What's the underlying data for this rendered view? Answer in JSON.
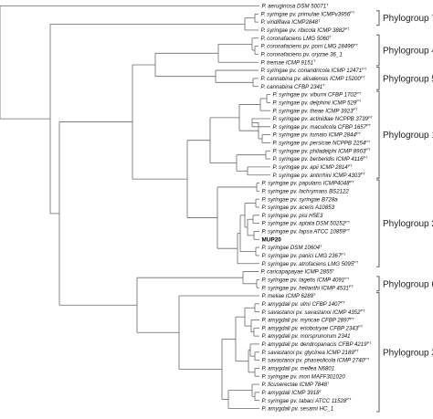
{
  "tree": {
    "leaves": [
      {
        "id": 0,
        "name": "P. aeruginosa DSM 50071",
        "sup": "T"
      },
      {
        "id": 1,
        "name": "P. syringae pv. primulae ICMPv3956",
        "sup": "PT"
      },
      {
        "id": 2,
        "name": "P. viridiflava ICMP2848",
        "sup": "T"
      },
      {
        "id": 3,
        "name": "P. syringae pv. ribicola ICMP 3882",
        "sup": "PT"
      },
      {
        "id": 4,
        "name": "P. coronafaciens LMG 5060",
        "sup": "T"
      },
      {
        "id": 5,
        "name": "P. coronafaciens pv. porri LMG 28496",
        "sup": "PT"
      },
      {
        "id": 6,
        "name": "P. coronafaciens pv. oryzae 36_1",
        "sup": ""
      },
      {
        "id": 7,
        "name": "P. tremae ICMP 9151",
        "sup": "T"
      },
      {
        "id": 8,
        "name": "P. syringae pv. coriandricola ICMP 12471",
        "sup": "PT"
      },
      {
        "id": 9,
        "name": "P. cannabina pv. alisalensis ICMP 15200",
        "sup": "PT"
      },
      {
        "id": 10,
        "name": "P. cannabina CFBP 2341",
        "sup": "T"
      },
      {
        "id": 11,
        "name": "P. syringae pv. viburni CFBP 1702",
        "sup": "PT"
      },
      {
        "id": 12,
        "name": "P. syringae pv. delphinii ICMP 529",
        "sup": "PT"
      },
      {
        "id": 13,
        "name": "P. syringae pv. theae ICMP 3923",
        "sup": "PT"
      },
      {
        "id": 14,
        "name": "P. syringae pv. actinidiae NCPPB 3739",
        "sup": "PT"
      },
      {
        "id": 15,
        "name": "P. syringae pv. maculicola CFBP 1657",
        "sup": "PT"
      },
      {
        "id": 16,
        "name": "P. syringae pv. tomato ICMP 2844",
        "sup": "PT"
      },
      {
        "id": 17,
        "name": "P. syringae pv. persicae NCPPB 2254",
        "sup": "PT"
      },
      {
        "id": 18,
        "name": "P. syringae pv. philadelphi ICMP 8903",
        "sup": "PT"
      },
      {
        "id": 19,
        "name": "P. syringae pv. berberidis ICMP 4116",
        "sup": "PT"
      },
      {
        "id": 20,
        "name": "P. syringae pv. apii ICMP 2814",
        "sup": "PT"
      },
      {
        "id": 21,
        "name": "P. syringae pv. antirrhini ICMP 4303",
        "sup": "PT"
      },
      {
        "id": 22,
        "name": "P. syringae pv. papulans ICMP4048",
        "sup": "PT"
      },
      {
        "id": 23,
        "name": "P. syringae pv. lachrymans BS2122",
        "sup": ""
      },
      {
        "id": 24,
        "name": "P. syringae pv. syringae B728a",
        "sup": ""
      },
      {
        "id": 25,
        "name": "P. syringae pv. aceris A10853",
        "sup": ""
      },
      {
        "id": 26,
        "name": "P. syringae pv. pisi H5E3",
        "sup": ""
      },
      {
        "id": 27,
        "name": "P. syringae pv. aptata DSM 50252",
        "sup": "PT"
      },
      {
        "id": 28,
        "name": "P. syringae pv. lapsa ATCC 10859",
        "sup": "PT"
      },
      {
        "id": 29,
        "name": "MUP20",
        "sup": "",
        "bold": true
      },
      {
        "id": 30,
        "name": "P. syringae DSM 10604",
        "sup": "T"
      },
      {
        "id": 31,
        "name": "P. syringae pv. panici LMG 2367",
        "sup": "PT"
      },
      {
        "id": 32,
        "name": "P. syringae pv. atrofaciens LMG 5095",
        "sup": "PT"
      },
      {
        "id": 33,
        "name": "P. caricapapayae ICMP 2855",
        "sup": "T"
      },
      {
        "id": 34,
        "name": "P. syringae pv. tagetis ICMP 4091",
        "sup": "PT"
      },
      {
        "id": 35,
        "name": "P. syringae pv. helianthi ICMP 4531",
        "sup": "PT"
      },
      {
        "id": 36,
        "name": "P. meliae ICMP 6289",
        "sup": "T"
      },
      {
        "id": 37,
        "name": "P. amygdali pv. ulmi CFBP 1407",
        "sup": "PT"
      },
      {
        "id": 38,
        "name": "P. savastanoi pv. savastanoi ICMP 4352",
        "sup": "PT"
      },
      {
        "id": 39,
        "name": "P. amygdali pv. myricae CFBP 2897",
        "sup": "PT"
      },
      {
        "id": 40,
        "name": "P. amygdali pv. eriobotryae CFBP 2343",
        "sup": "PT"
      },
      {
        "id": 41,
        "name": "P. amygdali pv. morsprunorum 2341",
        "sup": ""
      },
      {
        "id": 42,
        "name": "P. amygdali pv. dendropanacis CFBP 4219",
        "sup": "PT"
      },
      {
        "id": 43,
        "name": "P. savastanoi pv. glycinea ICMP 2189",
        "sup": "PT"
      },
      {
        "id": 44,
        "name": "P. savastanoi pv. phaseolicola ICMP 2740",
        "sup": "PT"
      },
      {
        "id": 45,
        "name": "P. amygdali pv. mellea N6801",
        "sup": ""
      },
      {
        "id": 46,
        "name": "P. syringae pv. mori MAFF301020",
        "sup": ""
      },
      {
        "id": 47,
        "name": "P. ficuserectae ICMP 7848",
        "sup": "T"
      },
      {
        "id": 48,
        "name": "P. amygdali ICMP 3918",
        "sup": "T"
      },
      {
        "id": 49,
        "name": "P. syringae pv. tabaci ATCC 11528",
        "sup": "PT"
      },
      {
        "id": 50,
        "name": "P. amygdali pv. sesami HC_1",
        "sup": ""
      }
    ],
    "groups": [
      {
        "label": "Phylogroup 7",
        "first": 1,
        "last": 2
      },
      {
        "label": "Phylogroup 4",
        "first": 4,
        "last": 7
      },
      {
        "label": "Phylogroup 5",
        "first": 8,
        "last": 10
      },
      {
        "label": "Phylogroup 1",
        "first": 11,
        "last": 21
      },
      {
        "label": "Phylogroup 2",
        "first": 22,
        "last": 32
      },
      {
        "label": "Phylogroup 6",
        "first": 34,
        "last": 35
      },
      {
        "label": "Phylogroup 3",
        "first": 36,
        "last": 50
      }
    ]
  }
}
